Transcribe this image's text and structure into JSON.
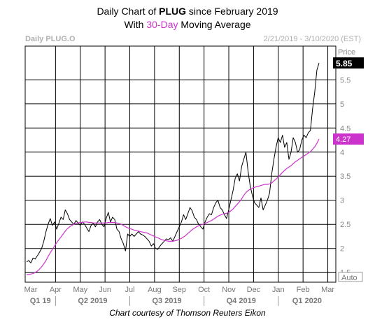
{
  "header": {
    "title_prefix": "Daily Chart of ",
    "title_ticker": "PLUG",
    "title_suffix": " since February 2019",
    "subtitle_prefix": "With ",
    "subtitle_accent": "30-Day",
    "subtitle_suffix": " Moving Average"
  },
  "chart_data": {
    "type": "line",
    "instrument_label": "Daily PLUG.O",
    "date_range_label": "2/21/2019 - 3/10/2020 (EST)",
    "price_axis_label": "Price",
    "auto_label": "Auto",
    "last_price_label": "5.85",
    "ma_last_label": "4.27",
    "ylim": [
      1.3,
      6.2
    ],
    "y_ticks": [
      1.5,
      2,
      2.5,
      3,
      3.5,
      4,
      4.5,
      5,
      5.5
    ],
    "y_tick_labels": [
      "1.5",
      "2",
      "2.5",
      "3",
      "3.5",
      "4",
      "4.5",
      "5",
      "5.5"
    ],
    "months": [
      "Mar",
      "Apr",
      "May",
      "Jun",
      "Jul",
      "Aug",
      "Sep",
      "Oct",
      "Nov",
      "Dec",
      "Jan",
      "Feb",
      "Mar"
    ],
    "quarters": [
      "Q1 19",
      "Q2 2019",
      "Q3 2019",
      "Q4 2019",
      "Q1 2020"
    ],
    "colors": {
      "price": "#000000",
      "moving_average": "#cc33cc",
      "grid": "#000000",
      "last_price_bg": "#000000",
      "ma_label_bg": "#cc33cc"
    },
    "series": [
      {
        "name": "",
        "role": "price",
        "values": [
          1.72,
          1.75,
          1.7,
          1.8,
          1.78,
          1.85,
          1.92,
          2.0,
          2.15,
          2.35,
          2.5,
          2.62,
          2.48,
          2.55,
          2.4,
          2.52,
          2.65,
          2.6,
          2.8,
          2.72,
          2.6,
          2.55,
          2.5,
          2.58,
          2.52,
          2.48,
          2.55,
          2.5,
          2.42,
          2.35,
          2.48,
          2.52,
          2.45,
          2.55,
          2.6,
          2.5,
          2.45,
          2.62,
          2.75,
          2.55,
          2.65,
          2.6,
          2.4,
          2.35,
          2.2,
          2.1,
          1.95,
          2.3,
          2.25,
          2.3,
          2.25,
          2.3,
          2.35,
          2.3,
          2.28,
          2.25,
          2.2,
          2.15,
          2.05,
          2.1,
          2.0,
          1.98,
          2.05,
          2.1,
          2.15,
          2.2,
          2.18,
          2.22,
          2.15,
          2.25,
          2.35,
          2.45,
          2.55,
          2.7,
          2.6,
          2.72,
          2.85,
          2.78,
          2.65,
          2.6,
          2.5,
          2.45,
          2.4,
          2.55,
          2.65,
          2.72,
          2.7,
          2.85,
          2.95,
          3.0,
          2.85,
          2.8,
          2.7,
          2.62,
          2.8,
          3.0,
          3.2,
          3.45,
          3.55,
          3.4,
          3.7,
          3.85,
          4.0,
          3.6,
          3.3,
          3.1,
          2.95,
          2.9,
          2.85,
          3.05,
          2.8,
          2.9,
          3.0,
          3.15,
          3.55,
          3.85,
          4.1,
          4.3,
          4.2,
          4.35,
          4.1,
          4.2,
          3.85,
          4.0,
          4.3,
          4.2,
          4.0,
          4.05,
          4.25,
          4.35,
          4.3,
          4.4,
          4.45,
          4.9,
          5.25,
          5.7,
          5.85
        ]
      },
      {
        "name": "30-Day",
        "role": "moving_average",
        "values": [
          1.45,
          1.46,
          1.47,
          1.48,
          1.5,
          1.53,
          1.57,
          1.62,
          1.68,
          1.75,
          1.83,
          1.91,
          1.98,
          2.05,
          2.12,
          2.18,
          2.24,
          2.3,
          2.36,
          2.41,
          2.45,
          2.48,
          2.5,
          2.52,
          2.53,
          2.54,
          2.54,
          2.55,
          2.55,
          2.54,
          2.54,
          2.53,
          2.53,
          2.53,
          2.53,
          2.53,
          2.53,
          2.53,
          2.54,
          2.54,
          2.54,
          2.54,
          2.53,
          2.52,
          2.5,
          2.48,
          2.45,
          2.43,
          2.41,
          2.4,
          2.38,
          2.37,
          2.36,
          2.35,
          2.34,
          2.33,
          2.32,
          2.3,
          2.28,
          2.26,
          2.24,
          2.22,
          2.2,
          2.18,
          2.17,
          2.16,
          2.15,
          2.15,
          2.15,
          2.16,
          2.17,
          2.19,
          2.21,
          2.24,
          2.27,
          2.31,
          2.35,
          2.39,
          2.42,
          2.45,
          2.47,
          2.49,
          2.5,
          2.52,
          2.54,
          2.56,
          2.58,
          2.61,
          2.64,
          2.67,
          2.69,
          2.71,
          2.72,
          2.73,
          2.75,
          2.78,
          2.82,
          2.87,
          2.92,
          2.97,
          3.03,
          3.1,
          3.16,
          3.2,
          3.23,
          3.25,
          3.27,
          3.28,
          3.29,
          3.31,
          3.32,
          3.33,
          3.33,
          3.34,
          3.36,
          3.4,
          3.44,
          3.48,
          3.53,
          3.58,
          3.62,
          3.66,
          3.69,
          3.72,
          3.76,
          3.8,
          3.83,
          3.86,
          3.89,
          3.92,
          3.95,
          3.98,
          4.01,
          4.06,
          4.11,
          4.18,
          4.27
        ]
      }
    ]
  },
  "footer": {
    "credit": "Chart courtesy of Thomson Reuters Eikon"
  }
}
